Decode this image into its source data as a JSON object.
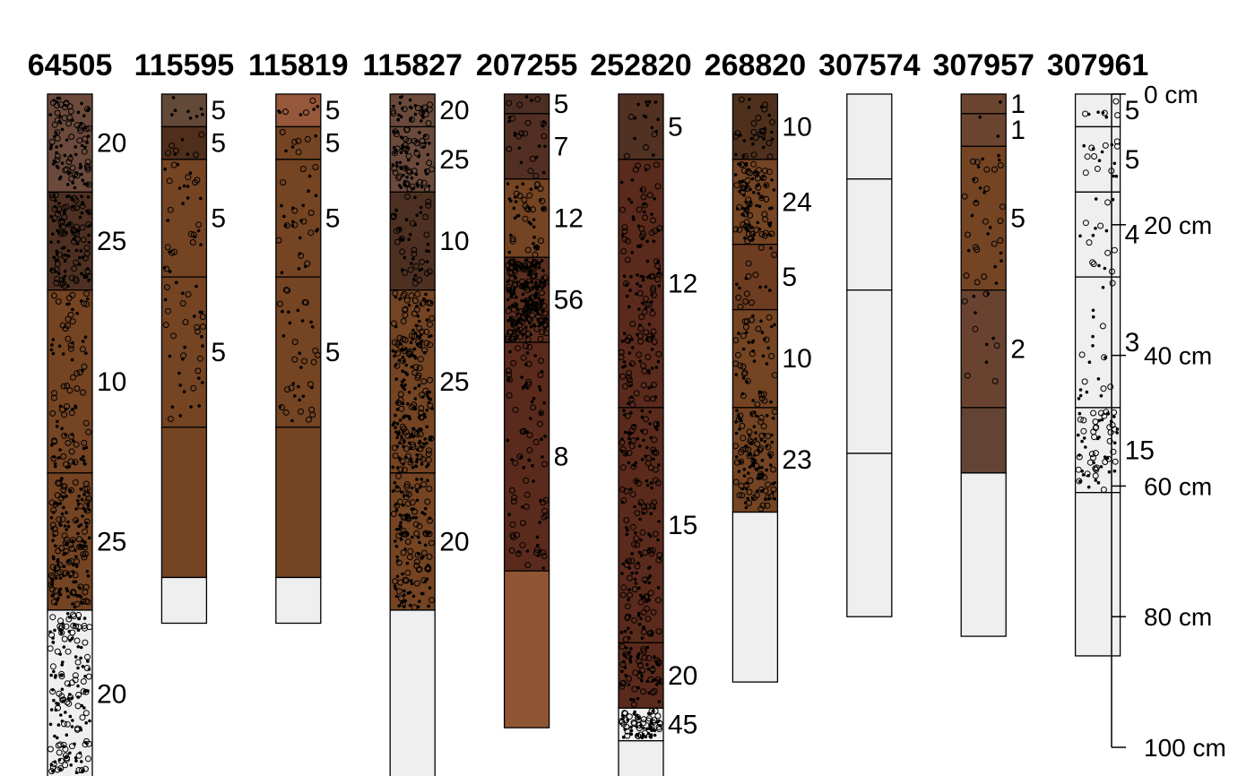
{
  "chart_data": {
    "type": "soil-profile-sketch",
    "depth_unit": "cm",
    "depth_axis": {
      "ticks": [
        0,
        20,
        40,
        60,
        80,
        100
      ],
      "tick_labels": [
        "0 cm",
        "20 cm",
        "40 cm",
        "60 cm",
        "80 cm",
        "100 cm"
      ],
      "ylim": [
        0,
        100
      ]
    },
    "profiles": [
      {
        "id": "64505",
        "horizons": [
          {
            "top": 0,
            "bottom": 15,
            "color": "#6b4a3c",
            "frag_label": "20",
            "frag": 20
          },
          {
            "top": 15,
            "bottom": 30,
            "color": "#4e3022",
            "frag_label": "25",
            "frag": 25
          },
          {
            "top": 30,
            "bottom": 58,
            "color": "#744423",
            "frag_label": "10",
            "frag": 10
          },
          {
            "top": 58,
            "bottom": 79,
            "color": "#744423",
            "frag_label": "25",
            "frag": 25
          },
          {
            "top": 79,
            "bottom": 106,
            "color": "#efefef",
            "frag_label": "20",
            "frag": 20
          }
        ]
      },
      {
        "id": "115595",
        "horizons": [
          {
            "top": 0,
            "bottom": 5,
            "color": "#634938",
            "frag_label": "5",
            "frag": 5
          },
          {
            "top": 5,
            "bottom": 10,
            "color": "#4f2e1b",
            "frag_label": "5",
            "frag": 5
          },
          {
            "top": 10,
            "bottom": 28,
            "color": "#744423",
            "frag_label": "5",
            "frag": 5
          },
          {
            "top": 28,
            "bottom": 51,
            "color": "#744423",
            "frag_label": "5",
            "frag": 5
          },
          {
            "top": 51,
            "bottom": 74,
            "color": "#744423",
            "frag_label": "",
            "frag": 0
          },
          {
            "top": 74,
            "bottom": 81,
            "color": "#efefef",
            "frag_label": "",
            "frag": 0
          }
        ]
      },
      {
        "id": "115819",
        "horizons": [
          {
            "top": 0,
            "bottom": 5,
            "color": "#95583a",
            "frag_label": "5",
            "frag": 5
          },
          {
            "top": 5,
            "bottom": 10,
            "color": "#744423",
            "frag_label": "5",
            "frag": 5
          },
          {
            "top": 10,
            "bottom": 28,
            "color": "#744423",
            "frag_label": "5",
            "frag": 5
          },
          {
            "top": 28,
            "bottom": 51,
            "color": "#744423",
            "frag_label": "5",
            "frag": 5
          },
          {
            "top": 51,
            "bottom": 74,
            "color": "#744423",
            "frag_label": "",
            "frag": 0
          },
          {
            "top": 74,
            "bottom": 81,
            "color": "#efefef",
            "frag_label": "",
            "frag": 0
          }
        ]
      },
      {
        "id": "115827",
        "horizons": [
          {
            "top": 0,
            "bottom": 5,
            "color": "#6b4a3c",
            "frag_label": "20",
            "frag": 20
          },
          {
            "top": 5,
            "bottom": 15,
            "color": "#6b4a3c",
            "frag_label": "25",
            "frag": 25
          },
          {
            "top": 15,
            "bottom": 30,
            "color": "#4e3022",
            "frag_label": "10",
            "frag": 10
          },
          {
            "top": 30,
            "bottom": 58,
            "color": "#744423",
            "frag_label": "25",
            "frag": 25
          },
          {
            "top": 58,
            "bottom": 79,
            "color": "#744423",
            "frag_label": "20",
            "frag": 20
          },
          {
            "top": 79,
            "bottom": 106,
            "color": "#efefef",
            "frag_label": "",
            "frag": 0
          }
        ]
      },
      {
        "id": "207255",
        "horizons": [
          {
            "top": 0,
            "bottom": 3,
            "color": "#4c2e22",
            "frag_label": "5",
            "frag": 5
          },
          {
            "top": 3,
            "bottom": 13,
            "color": "#532f23",
            "frag_label": "7",
            "frag": 7
          },
          {
            "top": 13,
            "bottom": 25,
            "color": "#744423",
            "frag_label": "12",
            "frag": 12
          },
          {
            "top": 25,
            "bottom": 38,
            "color": "#5a2e1d",
            "frag_label": "56",
            "frag": 56
          },
          {
            "top": 38,
            "bottom": 73,
            "color": "#5a2a1c",
            "frag_label": "8",
            "frag": 8
          },
          {
            "top": 73,
            "bottom": 97,
            "color": "#905634",
            "frag_label": "",
            "frag": 0
          }
        ]
      },
      {
        "id": "252820",
        "horizons": [
          {
            "top": 0,
            "bottom": 10,
            "color": "#513122",
            "frag_label": "5",
            "frag": 5
          },
          {
            "top": 10,
            "bottom": 48,
            "color": "#5a2a1c",
            "frag_label": "12",
            "frag": 12
          },
          {
            "top": 48,
            "bottom": 84,
            "color": "#5a2a1c",
            "frag_label": "15",
            "frag": 15
          },
          {
            "top": 84,
            "bottom": 94,
            "color": "#5a2a1c",
            "frag_label": "20",
            "frag": 20
          },
          {
            "top": 94,
            "bottom": 99,
            "color": "#efefef",
            "frag_label": "45",
            "frag": 45
          },
          {
            "top": 99,
            "bottom": 106,
            "color": "#efefef",
            "frag_label": "",
            "frag": 0
          }
        ]
      },
      {
        "id": "268820",
        "horizons": [
          {
            "top": 0,
            "bottom": 10,
            "color": "#4e301c",
            "frag_label": "10",
            "frag": 10
          },
          {
            "top": 10,
            "bottom": 23,
            "color": "#744423",
            "frag_label": "24",
            "frag": 24
          },
          {
            "top": 23,
            "bottom": 33,
            "color": "#6e3c20",
            "frag_label": "5",
            "frag": 5
          },
          {
            "top": 33,
            "bottom": 48,
            "color": "#744423",
            "frag_label": "10",
            "frag": 10
          },
          {
            "top": 48,
            "bottom": 64,
            "color": "#744423",
            "frag_label": "23",
            "frag": 23
          },
          {
            "top": 64,
            "bottom": 90,
            "color": "#efefef",
            "frag_label": "",
            "frag": 0
          }
        ]
      },
      {
        "id": "307574",
        "horizons": [
          {
            "top": 0,
            "bottom": 13,
            "color": "#efefef",
            "frag_label": "",
            "frag": 0
          },
          {
            "top": 13,
            "bottom": 30,
            "color": "#efefef",
            "frag_label": "",
            "frag": 0
          },
          {
            "top": 30,
            "bottom": 55,
            "color": "#efefef",
            "frag_label": "",
            "frag": 0
          },
          {
            "top": 55,
            "bottom": 80,
            "color": "#efefef",
            "frag_label": "",
            "frag": 0
          }
        ]
      },
      {
        "id": "307957",
        "horizons": [
          {
            "top": 0,
            "bottom": 3,
            "color": "#6b4530",
            "frag_label": "1",
            "frag": 1
          },
          {
            "top": 3,
            "bottom": 8,
            "color": "#6b4530",
            "frag_label": "1",
            "frag": 1
          },
          {
            "top": 8,
            "bottom": 30,
            "color": "#744423",
            "frag_label": "5",
            "frag": 5
          },
          {
            "top": 30,
            "bottom": 48,
            "color": "#6a4330",
            "frag_label": "2",
            "frag": 2
          },
          {
            "top": 48,
            "bottom": 58,
            "color": "#634434",
            "frag_label": "",
            "frag": 0
          },
          {
            "top": 58,
            "bottom": 83,
            "color": "#efefef",
            "frag_label": "",
            "frag": 0
          }
        ]
      },
      {
        "id": "307961",
        "horizons": [
          {
            "top": 0,
            "bottom": 5,
            "color": "#efefef",
            "frag_label": "5",
            "frag": 5
          },
          {
            "top": 5,
            "bottom": 15,
            "color": "#efefef",
            "frag_label": "5",
            "frag": 5
          },
          {
            "top": 15,
            "bottom": 28,
            "color": "#efefef",
            "frag_label": "4",
            "frag": 4
          },
          {
            "top": 28,
            "bottom": 48,
            "color": "#efefef",
            "frag_label": "3",
            "frag": 3
          },
          {
            "top": 48,
            "bottom": 61,
            "color": "#efefef",
            "frag_label": "15",
            "frag": 15
          },
          {
            "top": 61,
            "bottom": 86,
            "color": "#efefef",
            "frag_label": "",
            "frag": 0
          }
        ]
      }
    ]
  }
}
